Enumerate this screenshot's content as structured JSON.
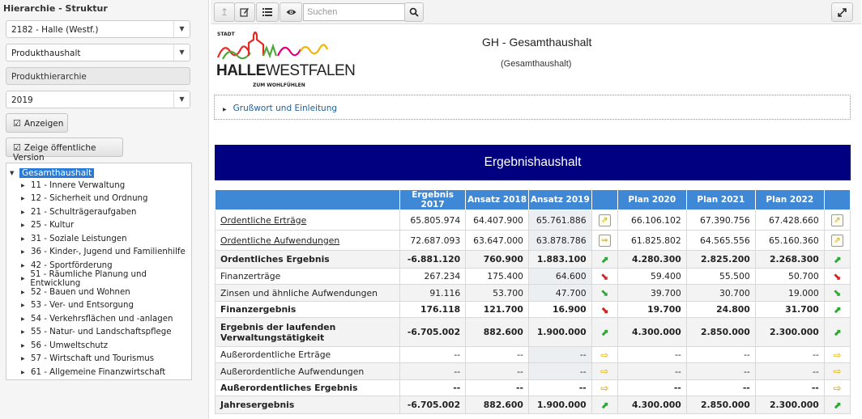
{
  "left": {
    "title": "Hierarchie - Struktur",
    "municipality": "2182 - Halle (Westf.)",
    "budget_type": "Produkthaushalt",
    "hierarchy": "Produkthierarchie",
    "year": "2019",
    "show_button": "Anzeigen",
    "public_version_button": "Zeige öffentliche Version",
    "tree_root": "Gesamthaushalt",
    "tree_items": [
      "11 - Innere Verwaltung",
      "12 - Sicherheit und Ordnung",
      "21 - Schulträgeraufgaben",
      "25 - Kultur",
      "31 - Soziale Leistungen",
      "36 - Kinder-, Jugend und Familienhilfe",
      "42 - Sportförderung",
      "51 - Räumliche Planung und Entwicklung",
      "52 - Bauen und Wohnen",
      "53 - Ver- und Entsorgung",
      "54 - Verkehrsflächen und -anlagen",
      "55 - Natur- und Landschaftspflege",
      "56 - Umweltschutz",
      "57 - Wirtschaft und Tourismus",
      "61 - Allgemeine Finanzwirtschaft"
    ]
  },
  "toolbar": {
    "search_placeholder": "Suchen"
  },
  "header": {
    "logo_small": "STADT",
    "logo_halle": "HALLE",
    "logo_westfalen": "WESTFALEN",
    "logo_tagline": "ZUM WOHLFÜHLEN",
    "title": "GH - Gesamthaushalt",
    "subtitle": "(Gesamthaushalt)"
  },
  "gruss": "Grußwort und Einleitung",
  "banner": "Ergebnishaushalt",
  "table": {
    "headers": [
      "",
      "Ergebnis 2017",
      "Ansatz 2018",
      "Ansatz 2019",
      "",
      "Plan 2020",
      "Plan 2021",
      "Plan 2022",
      ""
    ],
    "rows": [
      {
        "label": "Ordentliche Erträge",
        "vals": [
          "65.805.974",
          "64.407.900",
          "65.761.886"
        ],
        "i1": "boxed",
        "plan": [
          "66.106.102",
          "67.390.756",
          "67.428.660"
        ],
        "i2": "boxed"
      },
      {
        "label": "Ordentliche Aufwendungen",
        "vals": [
          "72.687.093",
          "63.647.000",
          "63.878.786"
        ],
        "i1": "boxed-right",
        "plan": [
          "61.825.802",
          "64.565.556",
          "65.160.360"
        ],
        "i2": "boxed"
      },
      {
        "label": "Ordentliches Ergebnis",
        "vals": [
          "-6.881.120",
          "760.900",
          "1.883.100"
        ],
        "i1": "up",
        "plan": [
          "4.280.300",
          "2.825.200",
          "2.268.300"
        ],
        "i2": "up"
      },
      {
        "label": "Finanzerträge",
        "vals": [
          "267.234",
          "175.400",
          "64.600"
        ],
        "i1": "down",
        "plan": [
          "59.400",
          "55.500",
          "50.700"
        ],
        "i2": "down"
      },
      {
        "label": "Zinsen und ähnliche Aufwendungen",
        "vals": [
          "91.116",
          "53.700",
          "47.700"
        ],
        "i1": "down-green",
        "plan": [
          "39.700",
          "30.700",
          "19.000"
        ],
        "i2": "down-green"
      },
      {
        "label": "Finanzergebnis",
        "vals": [
          "176.118",
          "121.700",
          "16.900"
        ],
        "i1": "down",
        "plan": [
          "19.700",
          "24.800",
          "31.700"
        ],
        "i2": "up"
      },
      {
        "label": "Ergebnis der laufenden Verwaltungstätigkeit",
        "vals": [
          "-6.705.002",
          "882.600",
          "1.900.000"
        ],
        "i1": "up",
        "plan": [
          "4.300.000",
          "2.850.000",
          "2.300.000"
        ],
        "i2": "up"
      },
      {
        "label": "Außerordentliche Erträge",
        "vals": [
          "--",
          "--",
          "--"
        ],
        "i1": "right",
        "plan": [
          "--",
          "--",
          "--"
        ],
        "i2": "right"
      },
      {
        "label": "Außerordentliche Aufwendungen",
        "vals": [
          "--",
          "--",
          "--"
        ],
        "i1": "right",
        "plan": [
          "--",
          "--",
          "--"
        ],
        "i2": "right"
      },
      {
        "label": "Außerordentliches Ergebnis",
        "vals": [
          "--",
          "--",
          "--"
        ],
        "i1": "right",
        "plan": [
          "--",
          "--",
          "--"
        ],
        "i2": "right"
      },
      {
        "label": "Jahresergebnis",
        "vals": [
          "-6.705.002",
          "882.600",
          "1.900.000"
        ],
        "i1": "up",
        "plan": [
          "4.300.000",
          "2.850.000",
          "2.300.000"
        ],
        "i2": "up"
      }
    ]
  }
}
